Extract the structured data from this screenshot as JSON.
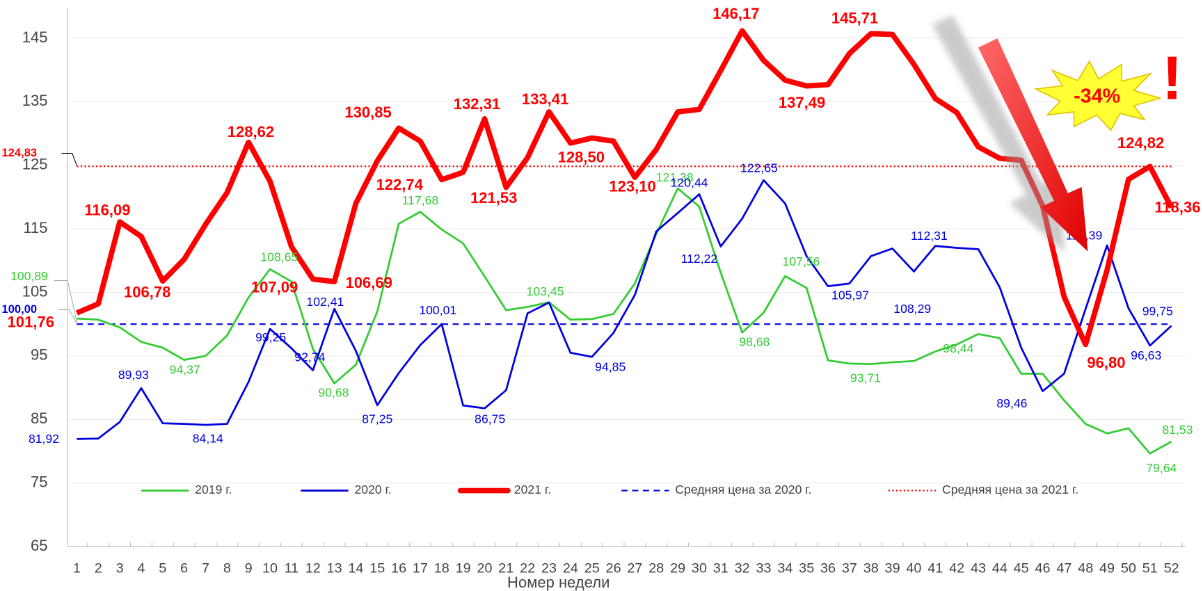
{
  "chart_data": {
    "type": "line",
    "x_label": "Номер недели",
    "categories": [
      "1",
      "2",
      "3",
      "4",
      "5",
      "6",
      "7",
      "8",
      "9",
      "10",
      "11",
      "12",
      "13",
      "14",
      "15",
      "16",
      "17",
      "18",
      "19",
      "20",
      "21",
      "22",
      "23",
      "24",
      "25",
      "26",
      "27",
      "28",
      "29",
      "30",
      "31",
      "32",
      "33",
      "34",
      "35",
      "36",
      "37",
      "38",
      "39",
      "40",
      "41",
      "42",
      "43",
      "44",
      "45",
      "46",
      "47",
      "48",
      "49",
      "50",
      "51",
      "52"
    ],
    "ylim": [
      65,
      150
    ],
    "yticks": [
      65,
      75,
      85,
      95,
      105,
      115,
      125,
      135,
      145
    ],
    "grid": true,
    "legend": "bottom",
    "series": [
      {
        "name": "2019 г.",
        "color": "#33cc33",
        "width": 2.5,
        "values": [
          100.89,
          100.7,
          99.5,
          97.2,
          96.3,
          94.37,
          95.0,
          98.2,
          104.2,
          108.65,
          106.7,
          96.1,
          90.68,
          93.6,
          102.0,
          115.8,
          117.68,
          114.9,
          112.7,
          107.5,
          102.2,
          102.7,
          103.45,
          100.7,
          100.8,
          101.6,
          106.4,
          114.2,
          121.38,
          118.5,
          108.1,
          98.68,
          101.8,
          107.56,
          105.7,
          94.3,
          93.8,
          93.71,
          94.0,
          94.2,
          95.7,
          96.8,
          98.44,
          97.8,
          92.2,
          92.2,
          88.0,
          84.3,
          82.8,
          83.6,
          79.64,
          81.53
        ],
        "value_labels": [
          "100,89",
          null,
          null,
          null,
          null,
          "94,37",
          null,
          null,
          null,
          "108,65",
          null,
          null,
          "90,68",
          null,
          null,
          null,
          "117,68",
          null,
          null,
          null,
          null,
          null,
          "103,45",
          null,
          null,
          null,
          null,
          null,
          "121,38",
          null,
          null,
          "98,68",
          null,
          "107,56",
          null,
          null,
          null,
          "93,71",
          null,
          null,
          null,
          null,
          "98,44",
          null,
          null,
          null,
          null,
          null,
          null,
          null,
          "79,64",
          "81,53"
        ]
      },
      {
        "name": "2020 г.",
        "color": "#0000e0",
        "width": 2.5,
        "values": [
          81.92,
          82.0,
          84.6,
          89.93,
          84.4,
          84.3,
          84.14,
          84.3,
          90.9,
          99.25,
          96.2,
          92.74,
          102.41,
          95.8,
          87.25,
          92.3,
          96.7,
          100.01,
          87.2,
          86.75,
          89.6,
          101.7,
          103.4,
          95.5,
          94.85,
          98.6,
          104.6,
          114.6,
          117.5,
          120.44,
          112.22,
          116.6,
          122.65,
          119.0,
          110.7,
          105.97,
          106.4,
          110.7,
          111.9,
          108.29,
          112.31,
          112.0,
          111.8,
          105.8,
          96.3,
          89.46,
          92.2,
          102.4,
          112.39,
          102.5,
          96.63,
          99.75
        ],
        "value_labels": [
          "81,92",
          null,
          null,
          "89,93",
          null,
          null,
          "84,14",
          null,
          null,
          "99,25",
          null,
          "92,74",
          "102,41",
          null,
          "87,25",
          null,
          null,
          "100,01",
          null,
          "86,75",
          null,
          null,
          null,
          null,
          "94,85",
          null,
          null,
          null,
          null,
          "120,44",
          "112,22",
          null,
          "122,65",
          null,
          null,
          "105,97",
          null,
          null,
          null,
          "108,29",
          "112,31",
          null,
          null,
          null,
          null,
          "89,46",
          null,
          null,
          "112,39",
          null,
          "96,63",
          "99,75"
        ]
      },
      {
        "name": "2021 г.",
        "color": "#ff0000",
        "width": 7,
        "values": [
          101.76,
          103.2,
          116.09,
          113.8,
          106.78,
          110.2,
          115.7,
          120.7,
          128.62,
          122.5,
          112.2,
          107.09,
          106.69,
          119.0,
          125.7,
          130.85,
          128.8,
          122.74,
          123.9,
          132.31,
          121.53,
          126.2,
          133.41,
          128.5,
          129.3,
          128.8,
          123.1,
          127.5,
          133.4,
          133.8,
          139.9,
          146.17,
          141.5,
          138.4,
          137.49,
          137.7,
          142.6,
          145.71,
          145.6,
          140.9,
          135.5,
          133.3,
          127.9,
          126.1,
          125.8,
          118.6,
          104.3,
          96.8,
          108.5,
          122.8,
          124.82,
          118.36
        ],
        "value_labels": [
          "101,76",
          null,
          "116,09",
          null,
          "106,78",
          null,
          null,
          null,
          "128,62",
          null,
          null,
          "107,09",
          "106,69",
          null,
          null,
          "130,85",
          null,
          "122,74",
          null,
          "132,31",
          "121,53",
          null,
          "133,41",
          "128,50",
          null,
          null,
          "123,10",
          null,
          null,
          null,
          null,
          "146,17",
          null,
          null,
          "137,49",
          null,
          null,
          "145,71",
          null,
          null,
          null,
          null,
          null,
          null,
          null,
          null,
          null,
          "96,80",
          null,
          null,
          "124,82",
          "118,36"
        ]
      }
    ],
    "reference_lines": [
      {
        "name": "Средняя цена за 2020 г.",
        "value": 100,
        "label": "100,00",
        "color": "#0000e0",
        "style": "dashed"
      },
      {
        "name": "Средняя цена за 2021 г.",
        "value": 124.83,
        "label": "124,83",
        "color": "#ff0000",
        "style": "dotted"
      }
    ],
    "annotations": [
      "-34%",
      "!"
    ]
  }
}
